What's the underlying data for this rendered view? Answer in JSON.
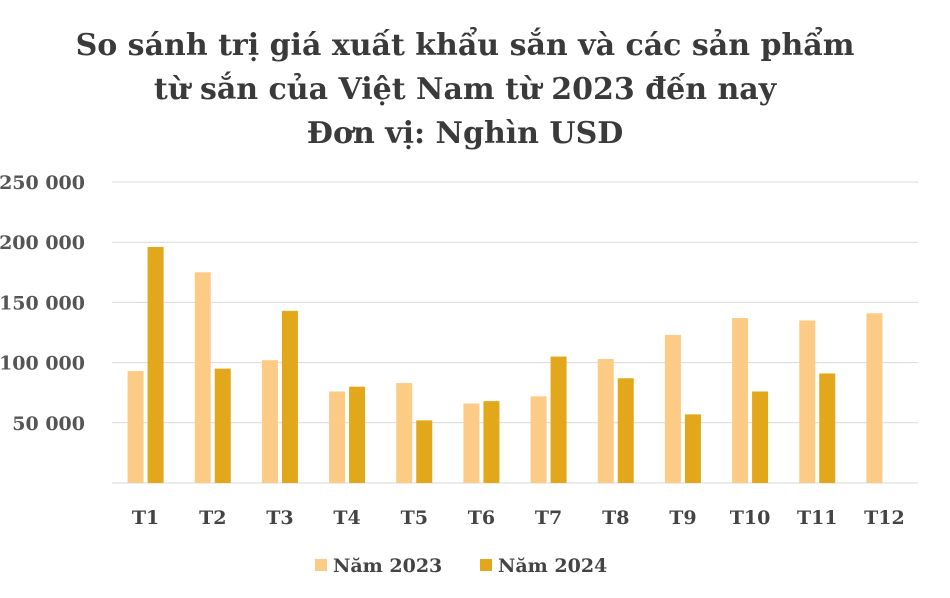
{
  "chart_data": {
    "type": "bar",
    "title_lines": [
      "So sánh trị giá xuất khẩu sắn và các sản phẩm",
      "từ sắn của Việt Nam từ 2023 đến nay",
      "Đơn vị: Nghìn USD"
    ],
    "categories": [
      "T1",
      "T2",
      "T3",
      "T4",
      "T5",
      "T6",
      "T7",
      "T8",
      "T9",
      "T10",
      "T11",
      "T12"
    ],
    "series": [
      {
        "name": "Năm 2023",
        "color": "#FCCB85",
        "values": [
          93000,
          175000,
          102000,
          76000,
          83000,
          66000,
          72000,
          103000,
          123000,
          137000,
          135000,
          141000
        ]
      },
      {
        "name": "Năm 2024",
        "color": "#E2A71A",
        "values": [
          196000,
          95000,
          143000,
          80000,
          52000,
          68000,
          105000,
          87000,
          57000,
          76000,
          91000,
          null
        ]
      }
    ],
    "ylim": [
      0,
      250000
    ],
    "yticks": [
      50000,
      100000,
      150000,
      200000,
      250000
    ],
    "ytick_labels": [
      "50 000",
      "100 000",
      "150 000",
      "200 000",
      "250 000"
    ],
    "grid": true,
    "legend_position": "bottom"
  }
}
